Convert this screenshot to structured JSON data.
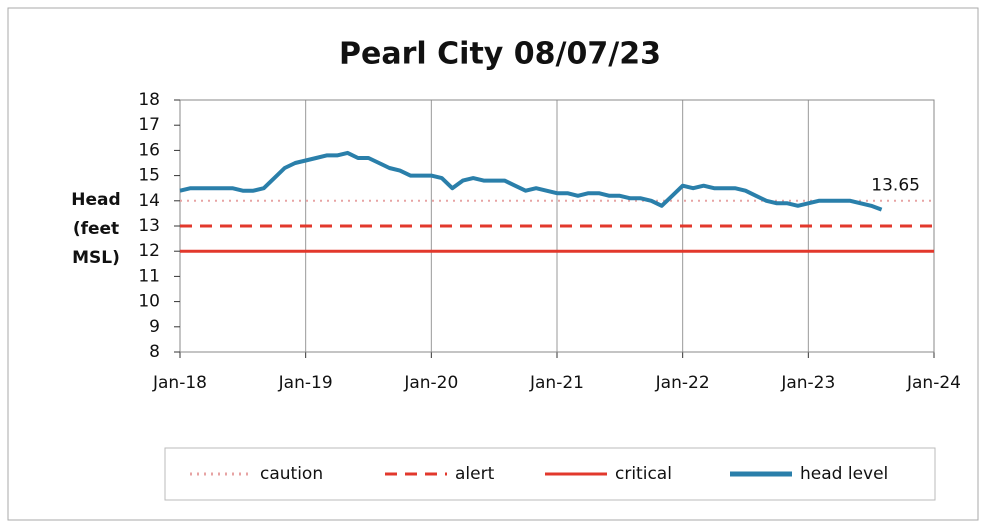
{
  "chart_data": {
    "type": "line",
    "title": "Pearl City 08/07/23",
    "ylabel": [
      "Head",
      "(feet",
      "MSL)"
    ],
    "ylim": [
      8,
      18
    ],
    "yticks": [
      8,
      9,
      10,
      11,
      12,
      13,
      14,
      15,
      16,
      17,
      18
    ],
    "xlim": [
      "2018-01",
      "2024-01"
    ],
    "xticks": [
      {
        "value": "2018-01",
        "label": "Jan-18"
      },
      {
        "value": "2019-01",
        "label": "Jan-19"
      },
      {
        "value": "2020-01",
        "label": "Jan-20"
      },
      {
        "value": "2021-01",
        "label": "Jan-21"
      },
      {
        "value": "2022-01",
        "label": "Jan-22"
      },
      {
        "value": "2023-01",
        "label": "Jan-23"
      },
      {
        "value": "2024-01",
        "label": "Jan-24"
      }
    ],
    "grid": true,
    "legend": "bottom",
    "annotation": "13.65",
    "series": [
      {
        "name": "caution",
        "color": "#e7a3a3",
        "style": "dotted",
        "x": [
          "2018-01",
          "2024-01"
        ],
        "values": [
          14,
          14
        ]
      },
      {
        "name": "alert",
        "color": "#e2382c",
        "style": "dashed",
        "x": [
          "2018-01",
          "2024-01"
        ],
        "values": [
          13,
          13
        ]
      },
      {
        "name": "critical",
        "color": "#e2382c",
        "style": "solid",
        "x": [
          "2018-01",
          "2024-01"
        ],
        "values": [
          12,
          12
        ]
      },
      {
        "name": "head level",
        "color": "#2a7faa",
        "style": "solid",
        "x": [
          "2018-01",
          "2018-02",
          "2018-03",
          "2018-04",
          "2018-05",
          "2018-06",
          "2018-07",
          "2018-08",
          "2018-09",
          "2018-10",
          "2018-11",
          "2018-12",
          "2019-01",
          "2019-02",
          "2019-03",
          "2019-04",
          "2019-05",
          "2019-06",
          "2019-07",
          "2019-08",
          "2019-09",
          "2019-10",
          "2019-11",
          "2019-12",
          "2020-01",
          "2020-02",
          "2020-03",
          "2020-04",
          "2020-05",
          "2020-06",
          "2020-07",
          "2020-08",
          "2020-09",
          "2020-10",
          "2020-11",
          "2020-12",
          "2021-01",
          "2021-02",
          "2021-03",
          "2021-04",
          "2021-05",
          "2021-06",
          "2021-07",
          "2021-08",
          "2021-09",
          "2021-10",
          "2021-11",
          "2021-12",
          "2022-01",
          "2022-02",
          "2022-03",
          "2022-04",
          "2022-05",
          "2022-06",
          "2022-07",
          "2022-08",
          "2022-09",
          "2022-10",
          "2022-11",
          "2022-12",
          "2023-01",
          "2023-02",
          "2023-03",
          "2023-04",
          "2023-05",
          "2023-06",
          "2023-07",
          "2023-08"
        ],
        "values": [
          14.4,
          14.5,
          14.5,
          14.5,
          14.5,
          14.5,
          14.4,
          14.4,
          14.5,
          14.9,
          15.3,
          15.5,
          15.6,
          15.7,
          15.8,
          15.8,
          15.9,
          15.7,
          15.7,
          15.5,
          15.3,
          15.2,
          15.0,
          15.0,
          15.0,
          14.9,
          14.5,
          14.8,
          14.9,
          14.8,
          14.8,
          14.8,
          14.6,
          14.4,
          14.5,
          14.4,
          14.3,
          14.3,
          14.2,
          14.3,
          14.3,
          14.2,
          14.2,
          14.1,
          14.1,
          14.0,
          13.8,
          14.2,
          14.6,
          14.5,
          14.6,
          14.5,
          14.5,
          14.5,
          14.4,
          14.2,
          14.0,
          13.9,
          13.9,
          13.8,
          13.9,
          14.0,
          14.0,
          14.0,
          14.0,
          13.9,
          13.8,
          13.65
        ]
      }
    ]
  }
}
